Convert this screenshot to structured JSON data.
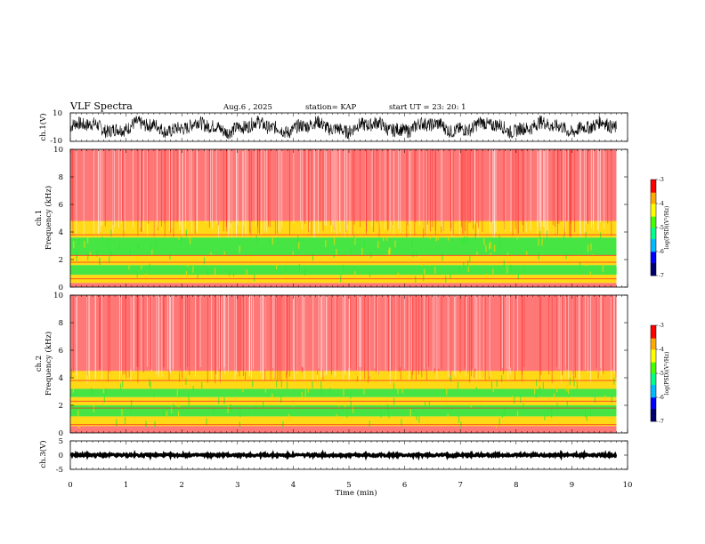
{
  "header": {
    "title": "VLF Spectra",
    "date": "Aug.6 , 2025",
    "station": "station= KAP",
    "start": "start UT = 23: 20: 1"
  },
  "colors": {
    "bg": "#ffffff",
    "ink": "#000000",
    "white_noise": "#fde2e2",
    "high": "#ff2020",
    "mid": "#ffd700",
    "low": "#33e633",
    "colormap": [
      "#000070",
      "#0000ff",
      "#00bbff",
      "#00ff88",
      "#44ff00",
      "#ffff00",
      "#ffaa00",
      "#ff0000",
      "#ffffff"
    ]
  },
  "chart_data": [
    {
      "type": "line",
      "name": "ch1-waveform",
      "ylabel": "ch.1(V)",
      "ylim": [
        -10,
        10
      ],
      "yticks": [
        "10",
        "-10"
      ],
      "x_range_min": [
        0,
        9.8
      ],
      "description_amplitude_v": 8
    },
    {
      "type": "heatmap",
      "name": "ch1-spectrogram",
      "ylabel": "Frequency (kHz)",
      "channel_label": "ch.1",
      "ylim": [
        0,
        10
      ],
      "yticks": [
        "0",
        "2",
        "4",
        "6",
        "8",
        "10"
      ],
      "bands": [
        {
          "from_khz": 0.0,
          "to_khz": 0.3,
          "level": "high"
        },
        {
          "from_khz": 0.3,
          "to_khz": 0.9,
          "level": "mid"
        },
        {
          "from_khz": 0.9,
          "to_khz": 1.6,
          "level": "low"
        },
        {
          "from_khz": 1.6,
          "to_khz": 2.3,
          "level": "mid"
        },
        {
          "from_khz": 2.3,
          "to_khz": 3.6,
          "level": "low"
        },
        {
          "from_khz": 3.6,
          "to_khz": 4.8,
          "level": "mid"
        },
        {
          "from_khz": 4.8,
          "to_khz": 10.0,
          "level": "high"
        }
      ],
      "colorbar": {
        "label": "log(PSD)(V²/Hz)",
        "ticks": [
          "-3",
          "-4",
          "-5",
          "-6",
          "-7"
        ],
        "range": [
          -7,
          -3
        ]
      }
    },
    {
      "type": "heatmap",
      "name": "ch2-spectrogram",
      "ylabel": "Frequency (kHz)",
      "channel_label": "ch.2",
      "ylim": [
        0,
        10
      ],
      "yticks": [
        "0",
        "2",
        "4",
        "6",
        "8",
        "10"
      ],
      "bands": [
        {
          "from_khz": 0.0,
          "to_khz": 0.5,
          "level": "high"
        },
        {
          "from_khz": 0.5,
          "to_khz": 1.2,
          "level": "mid"
        },
        {
          "from_khz": 1.2,
          "to_khz": 2.0,
          "level": "low"
        },
        {
          "from_khz": 2.0,
          "to_khz": 2.6,
          "level": "mid"
        },
        {
          "from_khz": 2.6,
          "to_khz": 3.2,
          "level": "low"
        },
        {
          "from_khz": 3.2,
          "to_khz": 4.5,
          "level": "mid"
        },
        {
          "from_khz": 4.5,
          "to_khz": 10.0,
          "level": "high"
        }
      ],
      "colorbar": {
        "label": "log(PSD)(V²/Hz)",
        "ticks": [
          "-3",
          "-4",
          "-5",
          "-6",
          "-7"
        ],
        "range": [
          -7,
          -3
        ]
      }
    },
    {
      "type": "line",
      "name": "ch3-waveform",
      "ylabel": "ch.3(V)",
      "ylim": [
        -5,
        5
      ],
      "yticks": [
        "5",
        "0",
        "-5"
      ],
      "level_v": 0,
      "noise_v": 0.4
    }
  ],
  "xaxis": {
    "label": "Time (min)",
    "ticks": [
      "0",
      "1",
      "2",
      "3",
      "4",
      "5",
      "6",
      "7",
      "8",
      "9",
      "10"
    ],
    "xlim": [
      0,
      10
    ],
    "data_end_min": 9.8
  }
}
